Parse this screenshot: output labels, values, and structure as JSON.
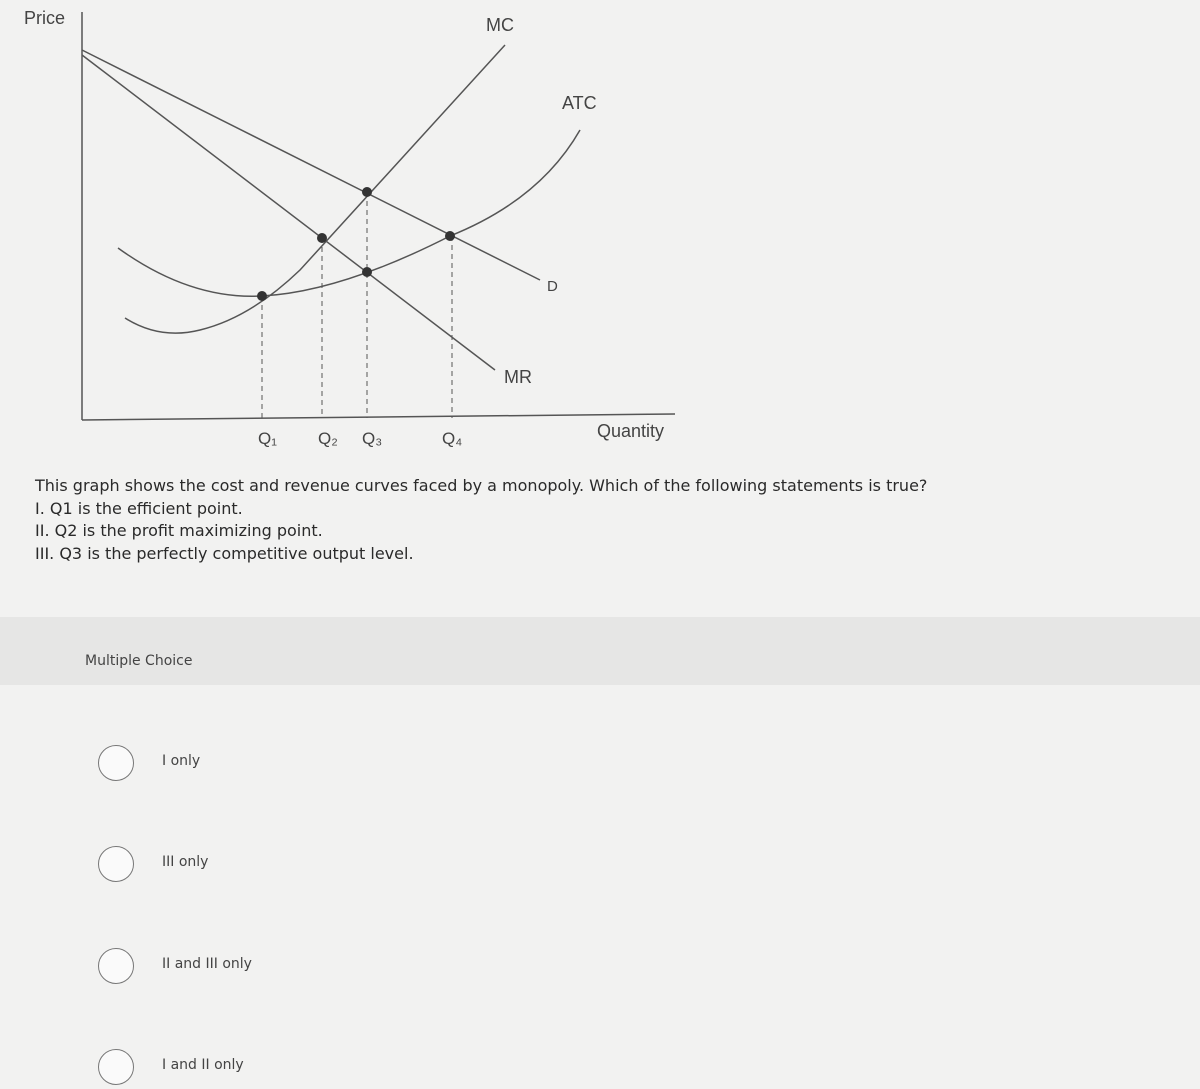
{
  "graph": {
    "y_label": "Price",
    "x_label": "Quantity",
    "curves": {
      "mc": "MC",
      "atc": "ATC",
      "d": "D",
      "mr": "MR"
    },
    "quantities": [
      "Q₁",
      "Q₂",
      "Q₃",
      "Q₄"
    ]
  },
  "question": {
    "text": "This graph shows the cost and revenue curves faced by a monopoly. Which of the following statements is true?",
    "statements": [
      "I. Q1 is the efficient point.",
      "II. Q2 is the profit maximizing point.",
      "III. Q3 is the perfectly competitive output level."
    ]
  },
  "multiple_choice": {
    "label": "Multiple Choice",
    "options": [
      "I only",
      "III only",
      "II and III only",
      "I and II only"
    ]
  }
}
